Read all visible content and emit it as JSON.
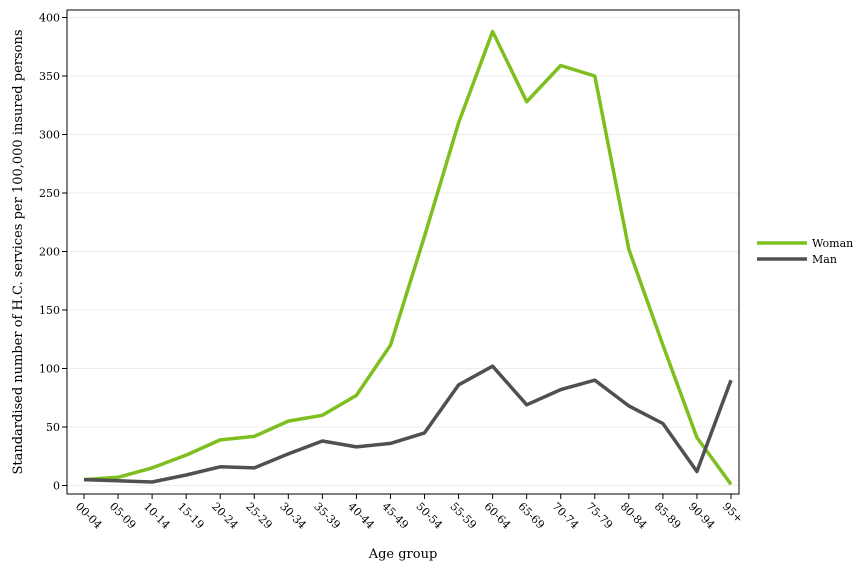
{
  "chart_data": {
    "type": "line",
    "xlabel": "Age group",
    "ylabel": "Standardised number of H.C. services per 100,000 insured persons",
    "categories": [
      "00-04",
      "05-09",
      "10-14",
      "15-19",
      "20-24",
      "25-29",
      "30-34",
      "35-39",
      "40-44",
      "45-49",
      "50-54",
      "55-59",
      "60-64",
      "65-69",
      "70-74",
      "75-79",
      "80-84",
      "85-89",
      "90-94",
      "95+"
    ],
    "ylim": [
      0,
      400
    ],
    "yticks": [
      0,
      50,
      100,
      150,
      200,
      250,
      300,
      350,
      400
    ],
    "grid": true,
    "legend_position": "right",
    "series": [
      {
        "name": "Woman",
        "color": "#7ebf1f",
        "values": [
          5,
          7,
          15,
          26,
          39,
          42,
          55,
          60,
          77,
          120,
          213,
          310,
          388,
          328,
          359,
          350,
          202,
          120,
          41,
          1
        ]
      },
      {
        "name": "Man",
        "color": "#505050",
        "values": [
          5,
          4,
          3,
          9,
          16,
          15,
          27,
          38,
          33,
          36,
          45,
          86,
          102,
          69,
          82,
          90,
          68,
          53,
          12,
          90
        ]
      }
    ]
  }
}
